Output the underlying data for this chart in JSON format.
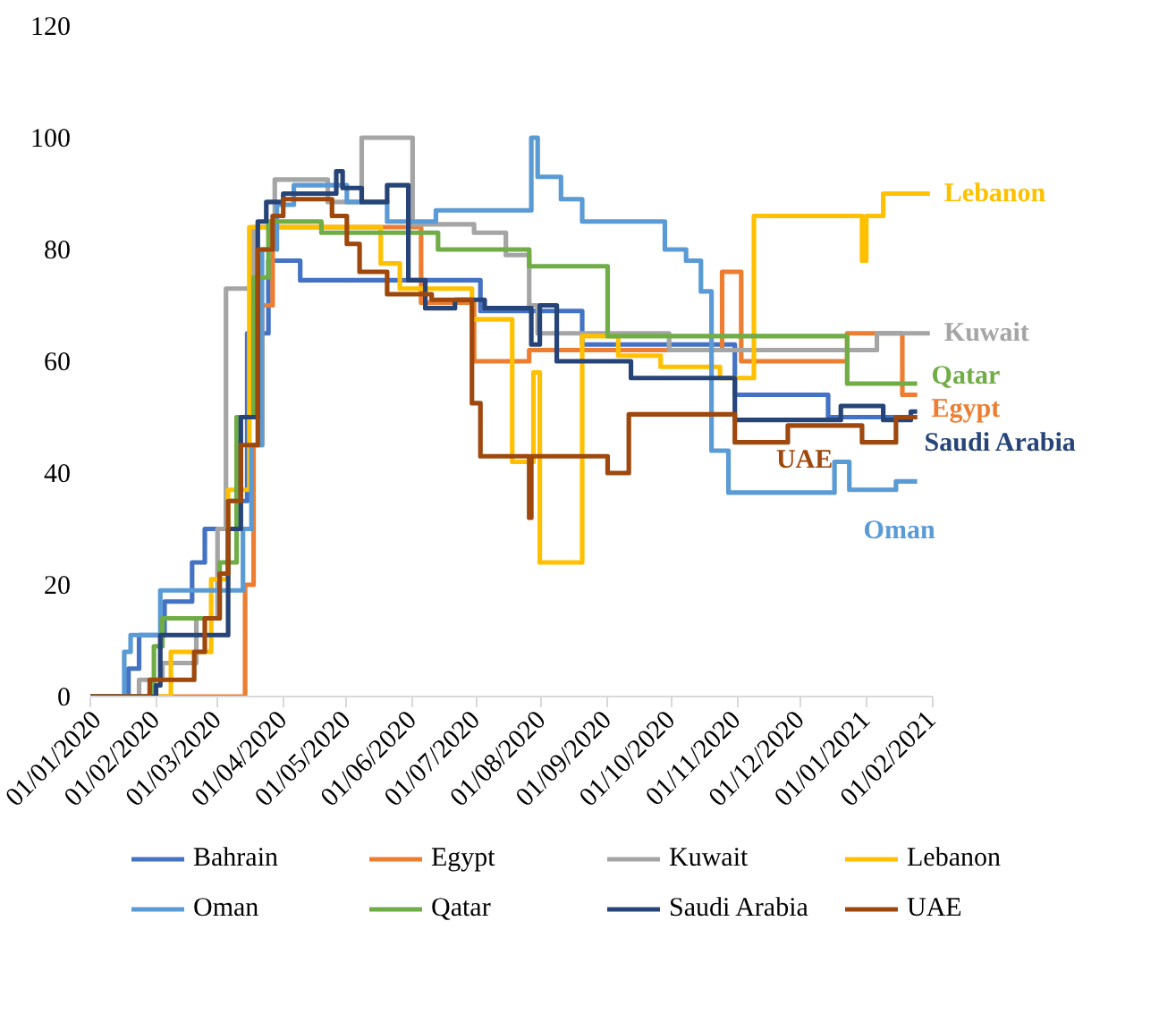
{
  "chart_data": {
    "type": "step",
    "xlim": [
      "2020-01-01",
      "2021-02-01"
    ],
    "ylim": [
      0,
      120
    ],
    "yticks": [
      0,
      20,
      40,
      60,
      80,
      100,
      120
    ],
    "xticks": [
      {
        "value": "2020-01-01",
        "label": "01/01/2020"
      },
      {
        "value": "2020-02-01",
        "label": "01/02/2020"
      },
      {
        "value": "2020-03-01",
        "label": "01/03/2020"
      },
      {
        "value": "2020-04-01",
        "label": "01/04/2020"
      },
      {
        "value": "2020-05-01",
        "label": "01/05/2020"
      },
      {
        "value": "2020-06-01",
        "label": "01/06/2020"
      },
      {
        "value": "2020-07-01",
        "label": "01/07/2020"
      },
      {
        "value": "2020-08-01",
        "label": "01/08/2020"
      },
      {
        "value": "2020-09-01",
        "label": "01/09/2020"
      },
      {
        "value": "2020-10-01",
        "label": "01/10/2020"
      },
      {
        "value": "2020-11-01",
        "label": "01/11/2020"
      },
      {
        "value": "2020-12-01",
        "label": "01/12/2020"
      },
      {
        "value": "2021-01-01",
        "label": "01/01/2021"
      },
      {
        "value": "2021-02-01",
        "label": "01/02/2021"
      }
    ],
    "grid": false,
    "legend": "bottom",
    "series": [
      {
        "name": "Bahrain",
        "color": "#4472c4",
        "x": [
          "2020-01-01",
          "2020-01-19",
          "2020-01-24",
          "2020-02-05",
          "2020-02-18",
          "2020-02-24",
          "2020-03-05",
          "2020-03-15",
          "2020-03-25",
          "2020-04-09",
          "2020-07-03",
          "2020-08-20",
          "2020-10-31",
          "2020-12-14",
          "2021-01-25"
        ],
        "values": [
          0,
          5,
          11,
          17,
          24,
          30,
          35,
          65,
          78,
          74.5,
          69,
          63,
          54,
          50,
          50
        ]
      },
      {
        "name": "Egypt",
        "color": "#ed7d31",
        "x": [
          "2020-01-01",
          "2020-03-14",
          "2020-03-18",
          "2020-03-22",
          "2020-03-27",
          "2020-06-05",
          "2020-06-30",
          "2020-07-26",
          "2020-10-25",
          "2020-11-03",
          "2020-12-23",
          "2021-01-18",
          "2021-01-25"
        ],
        "values": [
          0,
          20,
          45,
          70,
          84,
          70.5,
          60,
          62,
          76,
          60,
          65,
          54,
          54
        ]
      },
      {
        "name": "Kuwait",
        "color": "#a5a5a5",
        "x": [
          "2020-01-01",
          "2020-01-24",
          "2020-02-04",
          "2020-02-20",
          "2020-03-01",
          "2020-03-05",
          "2020-03-18",
          "2020-03-28",
          "2020-04-22",
          "2020-05-08",
          "2020-06-01",
          "2020-06-30",
          "2020-07-15",
          "2020-07-26",
          "2020-07-30",
          "2020-09-30",
          "2021-01-06",
          "2021-01-31"
        ],
        "values": [
          0,
          3,
          6,
          14,
          30,
          73,
          84,
          92.5,
          88.5,
          100,
          84.5,
          83,
          79,
          70,
          65,
          62,
          65,
          65
        ]
      },
      {
        "name": "Lebanon",
        "color": "#ffc000",
        "x": [
          "2020-01-01",
          "2020-02-08",
          "2020-02-27",
          "2020-03-06",
          "2020-03-16",
          "2020-05-17",
          "2020-05-26",
          "2020-06-29",
          "2020-07-18",
          "2020-07-28",
          "2020-07-31",
          "2020-08-20",
          "2020-09-06",
          "2020-09-26",
          "2020-10-24",
          "2020-11-09",
          "2020-12-30",
          "2021-01-01",
          "2021-01-09",
          "2021-01-31"
        ],
        "values": [
          0,
          8,
          21,
          37,
          84,
          77.5,
          73,
          67.5,
          42,
          58,
          24,
          64.5,
          61,
          59,
          57,
          86,
          78,
          86,
          90,
          90
        ]
      },
      {
        "name": "Oman",
        "color": "#5b9bd5",
        "x": [
          "2020-01-01",
          "2020-01-17",
          "2020-01-20",
          "2020-02-03",
          "2020-03-13",
          "2020-03-17",
          "2020-03-22",
          "2020-03-29",
          "2020-04-06",
          "2020-05-01",
          "2020-05-20",
          "2020-06-12",
          "2020-07-27",
          "2020-07-30",
          "2020-08-10",
          "2020-08-20",
          "2020-09-28",
          "2020-10-08",
          "2020-10-15",
          "2020-10-20",
          "2020-10-28",
          "2020-12-17",
          "2020-12-24",
          "2021-01-15",
          "2021-01-25"
        ],
        "values": [
          0,
          8,
          11,
          19,
          30,
          45,
          80,
          88,
          91.5,
          88.5,
          85,
          87,
          100,
          93,
          89,
          85,
          80,
          78,
          72.5,
          44,
          36.5,
          42,
          37,
          38.5,
          38.5
        ]
      },
      {
        "name": "Qatar",
        "color": "#70ad47",
        "x": [
          "2020-01-01",
          "2020-01-31",
          "2020-02-04",
          "2020-03-02",
          "2020-03-10",
          "2020-03-18",
          "2020-03-25",
          "2020-04-19",
          "2020-06-13",
          "2020-07-26",
          "2020-09-01",
          "2020-12-23",
          "2021-01-25"
        ],
        "values": [
          0,
          9,
          14,
          24,
          50,
          75,
          85,
          83,
          80,
          77,
          64.5,
          56,
          56
        ]
      },
      {
        "name": "Saudi Arabia",
        "color": "#264478",
        "x": [
          "2020-01-01",
          "2020-02-01",
          "2020-02-03",
          "2020-03-06",
          "2020-03-12",
          "2020-03-20",
          "2020-03-24",
          "2020-04-01",
          "2020-04-26",
          "2020-04-29",
          "2020-05-08",
          "2020-05-20",
          "2020-05-30",
          "2020-06-07",
          "2020-06-21",
          "2020-07-05",
          "2020-07-27",
          "2020-07-31",
          "2020-08-08",
          "2020-09-12",
          "2020-10-31",
          "2020-12-20",
          "2021-01-09",
          "2021-01-22",
          "2021-01-25"
        ],
        "values": [
          0,
          2,
          11,
          30,
          50,
          85,
          88.5,
          90,
          94,
          91,
          88.5,
          91.5,
          74.5,
          69.5,
          71,
          69.5,
          63,
          70,
          60,
          57,
          49.5,
          52,
          49.5,
          51,
          51
        ]
      },
      {
        "name": "UAE",
        "color": "#9e480e",
        "x": [
          "2020-01-01",
          "2020-01-29",
          "2020-02-19",
          "2020-02-24",
          "2020-03-02",
          "2020-03-06",
          "2020-03-12",
          "2020-03-20",
          "2020-03-27",
          "2020-04-01",
          "2020-04-24",
          "2020-05-01",
          "2020-05-07",
          "2020-05-20",
          "2020-06-10",
          "2020-06-29",
          "2020-07-03",
          "2020-07-26",
          "2020-07-27",
          "2020-09-01",
          "2020-09-11",
          "2020-10-31",
          "2020-11-25",
          "2020-12-30",
          "2021-01-15",
          "2021-01-25"
        ],
        "values": [
          0,
          3,
          8,
          14,
          22,
          35,
          45,
          80,
          86,
          89,
          86,
          81,
          76,
          72,
          71,
          52.5,
          43,
          32,
          43,
          40,
          50.5,
          45.5,
          48.5,
          45.5,
          50,
          50
        ]
      }
    ],
    "annotations": [
      {
        "text": "Lebanon",
        "x": "2021-01-31",
        "y": 90
      },
      {
        "text": "Kuwait",
        "x": "2021-01-31",
        "y": 65
      },
      {
        "text": "Qatar",
        "x": "2021-01-25",
        "y": 56
      },
      {
        "text": "Egypt",
        "x": "2021-01-25",
        "y": 54
      },
      {
        "text": "Saudi Arabia",
        "x": "2021-01-25",
        "y": 51
      },
      {
        "text": "UAE",
        "x": "2020-12-30",
        "y": 45.5
      },
      {
        "text": "Oman",
        "x": "2021-01-25",
        "y": 38.5
      }
    ]
  }
}
